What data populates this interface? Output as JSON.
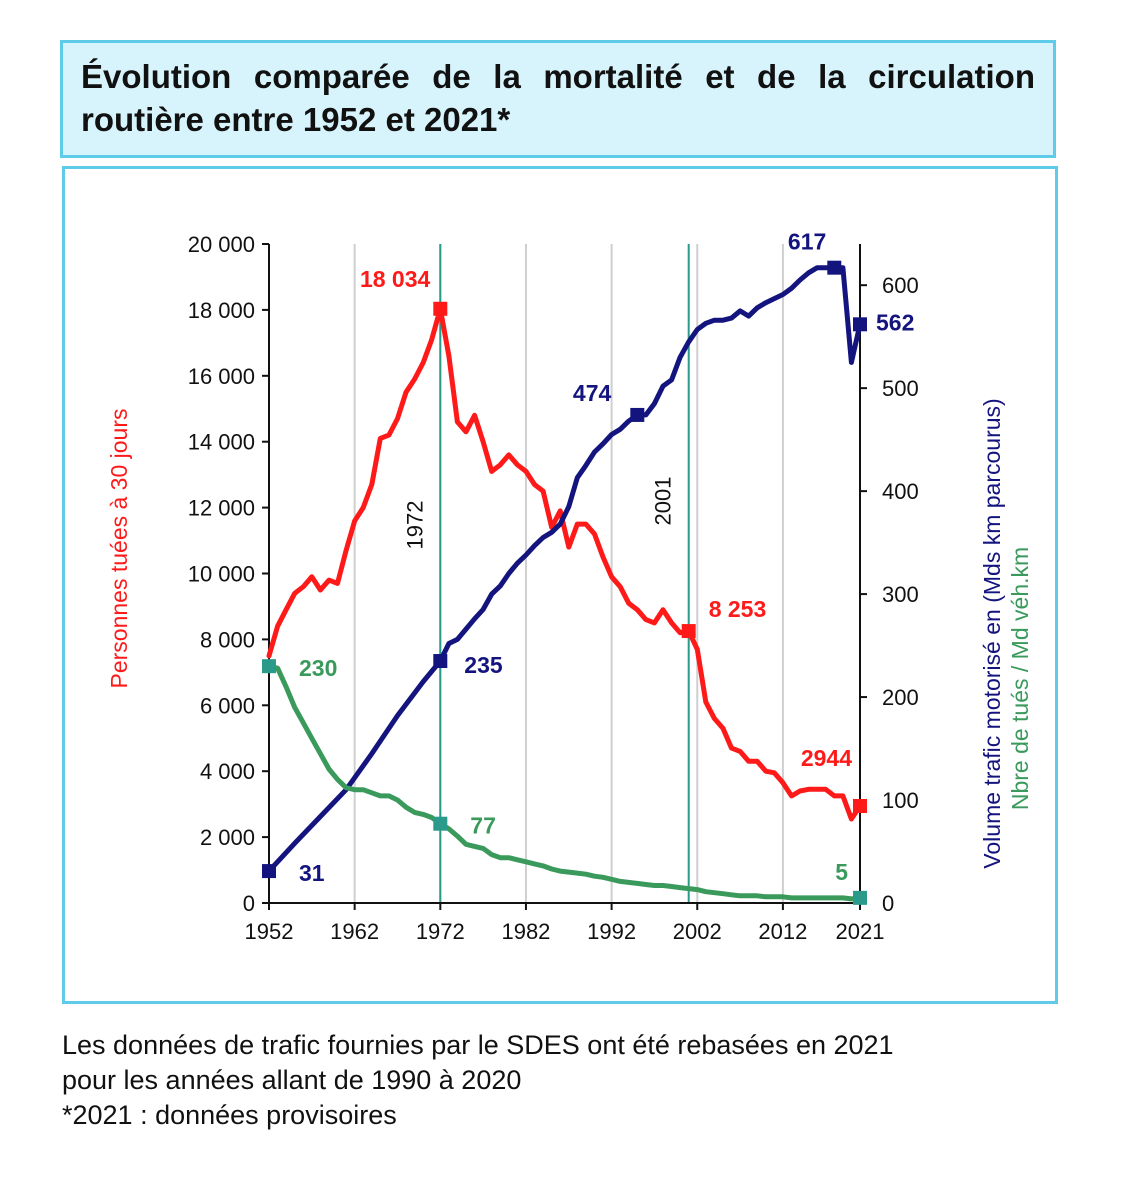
{
  "title": "Évolution comparée de la mortalité et de la circulation routière entre 1952 et 2021*",
  "caption": {
    "line1": "Les données de trafic fournies par le SDES ont été rebasées en 2021",
    "line2": "pour les années allant de 1990 à 2020",
    "line3": "*2021 : données provisoires"
  },
  "chart_data": {
    "type": "line",
    "x_ticks": [
      "1952",
      "1962",
      "1972",
      "1982",
      "1992",
      "2002",
      "2012",
      "2021"
    ],
    "xlim": [
      1952,
      2021
    ],
    "y_left": {
      "label": "Personnes tuées à 30 jours",
      "ylim": [
        0,
        20000
      ],
      "ticks": [
        "0",
        "2 000",
        "4 000",
        "6 000",
        "8 000",
        "10 000",
        "12 000",
        "14 000",
        "16 000",
        "18 000",
        "20 000"
      ]
    },
    "y_right": {
      "label_line1": "Volume trafic motorisé en (Mds km parcourus)",
      "label_line2": "Nbre de tués / Md véh.km",
      "ylim": [
        0,
        640
      ],
      "ticks": [
        "0",
        "100",
        "200",
        "300",
        "400",
        "500",
        "600"
      ]
    },
    "grid": "vertical",
    "reference_lines": [
      {
        "year": 1972,
        "label": "1972"
      },
      {
        "year": 2001,
        "label": "2001"
      }
    ],
    "colors": {
      "killed": "#ff1a1a",
      "traffic": "#14147f",
      "rate": "#3a9a5c",
      "reference": "#2a9a8a"
    },
    "series": [
      {
        "key": "killed",
        "axis": "left",
        "x": [
          1952,
          1953,
          1954,
          1955,
          1956,
          1957,
          1958,
          1959,
          1960,
          1961,
          1962,
          1963,
          1964,
          1965,
          1966,
          1967,
          1968,
          1969,
          1970,
          1971,
          1972,
          1973,
          1974,
          1975,
          1976,
          1977,
          1978,
          1979,
          1980,
          1981,
          1982,
          1983,
          1984,
          1985,
          1986,
          1987,
          1988,
          1989,
          1990,
          1991,
          1992,
          1993,
          1994,
          1995,
          1996,
          1997,
          1998,
          1999,
          2000,
          2001,
          2002,
          2003,
          2004,
          2005,
          2006,
          2007,
          2008,
          2009,
          2010,
          2011,
          2012,
          2013,
          2014,
          2015,
          2016,
          2017,
          2018,
          2019,
          2020,
          2021
        ],
        "values": [
          7500,
          8400,
          8900,
          9400,
          9600,
          9900,
          9500,
          9800,
          9700,
          10700,
          11600,
          12000,
          12700,
          14100,
          14200,
          14700,
          15500,
          15900,
          16400,
          17100,
          18034,
          16600,
          14600,
          14300,
          14800,
          14000,
          13100,
          13300,
          13600,
          13300,
          13100,
          12700,
          12500,
          11400,
          11900,
          10800,
          11500,
          11500,
          11200,
          10500,
          9900,
          9600,
          9100,
          8900,
          8600,
          8500,
          8900,
          8500,
          8200,
          8253,
          7700,
          6100,
          5600,
          5300,
          4700,
          4600,
          4300,
          4300,
          4000,
          3950,
          3650,
          3250,
          3400,
          3450,
          3450,
          3450,
          3250,
          3250,
          2550,
          2944
        ]
      },
      {
        "key": "traffic",
        "axis": "right",
        "x": [
          1952,
          1955,
          1958,
          1961,
          1964,
          1967,
          1970,
          1972,
          1973,
          1974,
          1975,
          1976,
          1977,
          1978,
          1979,
          1980,
          1981,
          1982,
          1983,
          1984,
          1985,
          1986,
          1987,
          1988,
          1989,
          1990,
          1991,
          1992,
          1993,
          1994,
          1995,
          1996,
          1997,
          1998,
          1999,
          2000,
          2001,
          2002,
          2003,
          2004,
          2005,
          2006,
          2007,
          2008,
          2009,
          2010,
          2011,
          2012,
          2013,
          2014,
          2015,
          2016,
          2017,
          2018,
          2019,
          2020,
          2021
        ],
        "values": [
          31,
          58,
          84,
          110,
          145,
          182,
          215,
          235,
          252,
          256,
          266,
          276,
          285,
          300,
          308,
          320,
          330,
          338,
          347,
          355,
          360,
          368,
          385,
          413,
          425,
          438,
          446,
          455,
          460,
          468,
          474,
          474,
          485,
          502,
          508,
          530,
          545,
          557,
          563,
          566,
          566,
          568,
          575,
          570,
          578,
          583,
          587,
          591,
          597,
          605,
          612,
          617,
          617,
          617,
          617,
          525,
          562
        ]
      },
      {
        "key": "rate",
        "axis": "right",
        "x": [
          1952,
          1953,
          1954,
          1955,
          1956,
          1957,
          1958,
          1959,
          1960,
          1961,
          1962,
          1963,
          1964,
          1965,
          1966,
          1967,
          1968,
          1969,
          1970,
          1971,
          1972,
          1973,
          1974,
          1975,
          1976,
          1977,
          1978,
          1979,
          1980,
          1981,
          1982,
          1983,
          1984,
          1985,
          1986,
          1987,
          1988,
          1989,
          1990,
          1991,
          1992,
          1993,
          1994,
          1995,
          1996,
          1997,
          1998,
          1999,
          2000,
          2001,
          2002,
          2003,
          2004,
          2005,
          2006,
          2007,
          2008,
          2009,
          2010,
          2011,
          2012,
          2013,
          2014,
          2015,
          2016,
          2017,
          2018,
          2019,
          2020,
          2021
        ],
        "values": [
          230,
          228,
          210,
          190,
          175,
          160,
          145,
          130,
          120,
          112,
          110,
          110,
          107,
          104,
          104,
          100,
          93,
          88,
          86,
          83,
          77,
          72,
          65,
          57,
          55,
          53,
          47,
          44,
          44,
          42,
          40,
          38,
          36,
          33,
          31,
          30,
          29,
          28,
          26,
          25,
          23,
          21,
          20,
          19,
          18,
          17,
          17,
          16,
          15,
          14,
          13,
          11,
          10,
          9,
          8,
          7,
          7,
          7,
          6,
          6,
          6,
          5,
          5,
          5,
          5,
          5,
          5,
          5,
          4,
          5
        ]
      }
    ],
    "annotations": [
      {
        "text": "18 034",
        "series": "killed",
        "x": 1972,
        "y": 18034
      },
      {
        "text": "8 253",
        "series": "killed",
        "x": 2001,
        "y": 8253
      },
      {
        "text": "2944",
        "series": "killed",
        "x": 2021,
        "y": 2944
      },
      {
        "text": "31",
        "series": "traffic",
        "x": 1952,
        "y": 31
      },
      {
        "text": "235",
        "series": "traffic",
        "x": 1972,
        "y": 235
      },
      {
        "text": "474",
        "series": "traffic",
        "x": 1995,
        "y": 474
      },
      {
        "text": "617",
        "series": "traffic",
        "x": 2018,
        "y": 617
      },
      {
        "text": "562",
        "series": "traffic",
        "x": 2021,
        "y": 562
      },
      {
        "text": "230",
        "series": "rate",
        "x": 1952,
        "y": 230
      },
      {
        "text": "77",
        "series": "rate",
        "x": 1972,
        "y": 77
      },
      {
        "text": "5",
        "series": "rate",
        "x": 2021,
        "y": 5
      }
    ]
  }
}
